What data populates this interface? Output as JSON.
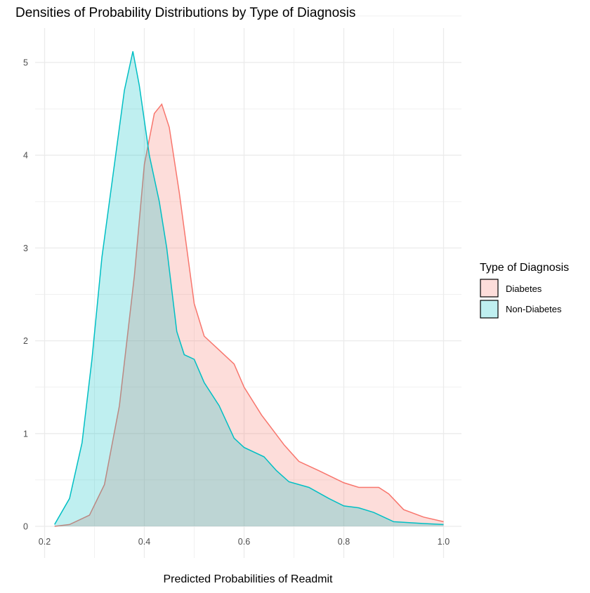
{
  "chart_data": {
    "type": "area",
    "title": "Densities of Probability Distributions by Type of Diagnosis",
    "xlabel": "Predicted Probabilities of Readmit",
    "ylabel": "",
    "xlim": [
      0.2,
      1.0
    ],
    "ylim": [
      0,
      5
    ],
    "xticks": [
      "0.2",
      "0.4",
      "0.6",
      "0.8",
      "1.0"
    ],
    "yticks": [
      "0",
      "1",
      "2",
      "3",
      "4",
      "5"
    ],
    "grid": true,
    "legend": {
      "title": "Type of Diagnosis",
      "position": "right"
    },
    "series": [
      {
        "name": "Diabetes",
        "line_color": "#F8766D",
        "fill_color": "#F8766D",
        "x": [
          0.22,
          0.25,
          0.29,
          0.32,
          0.35,
          0.38,
          0.4,
          0.42,
          0.435,
          0.45,
          0.47,
          0.49,
          0.5,
          0.52,
          0.55,
          0.58,
          0.6,
          0.635,
          0.68,
          0.71,
          0.75,
          0.8,
          0.83,
          0.87,
          0.89,
          0.92,
          0.96,
          1.0
        ],
        "y": [
          0.0,
          0.02,
          0.12,
          0.45,
          1.3,
          2.7,
          3.9,
          4.45,
          4.55,
          4.3,
          3.6,
          2.8,
          2.4,
          2.05,
          1.9,
          1.75,
          1.5,
          1.2,
          0.88,
          0.7,
          0.6,
          0.47,
          0.42,
          0.42,
          0.35,
          0.18,
          0.1,
          0.05
        ]
      },
      {
        "name": "Non-Diabetes",
        "line_color": "#00BFC4",
        "fill_color": "#00BFC4",
        "x": [
          0.22,
          0.25,
          0.275,
          0.295,
          0.315,
          0.34,
          0.36,
          0.377,
          0.39,
          0.41,
          0.43,
          0.445,
          0.465,
          0.48,
          0.5,
          0.52,
          0.55,
          0.58,
          0.6,
          0.64,
          0.665,
          0.69,
          0.73,
          0.77,
          0.8,
          0.83,
          0.86,
          0.9,
          0.96,
          1.0
        ],
        "y": [
          0.02,
          0.3,
          0.9,
          1.8,
          2.9,
          3.9,
          4.7,
          5.12,
          4.75,
          4.0,
          3.5,
          3.0,
          2.1,
          1.85,
          1.8,
          1.55,
          1.3,
          0.95,
          0.85,
          0.75,
          0.6,
          0.48,
          0.42,
          0.3,
          0.22,
          0.2,
          0.15,
          0.05,
          0.03,
          0.02
        ]
      }
    ]
  }
}
